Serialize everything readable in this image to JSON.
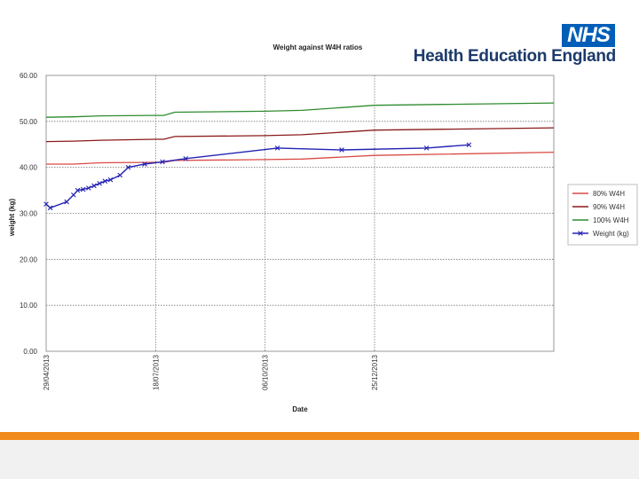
{
  "branding": {
    "nhs_logo": "NHS",
    "organisation": "Health Education England",
    "brand_color": "#005eb8",
    "text_color": "#1c3a6b",
    "footer_color": "#f08a1c"
  },
  "chart_data": {
    "type": "line",
    "title": "Weight against W4H ratios",
    "xlabel": "Date",
    "ylabel": "weight (kg)",
    "ylim": [
      0,
      60
    ],
    "yticks": [
      "0.00",
      "10.00",
      "20.00",
      "30.00",
      "40.00",
      "50.00",
      "60.00"
    ],
    "xlim": [
      "2013-04-29",
      "2014-05-05"
    ],
    "xtick_values": [
      "2013-04-29",
      "2013-07-18",
      "2013-10-06",
      "2013-12-25"
    ],
    "xticks": [
      "29/04/2013",
      "18/07/2013",
      "06/10/2013",
      "25/12/2013"
    ],
    "grid": true,
    "legend": "right",
    "series": [
      {
        "name": "80% W4H",
        "color": "#d94a45",
        "marker": "none",
        "points": [
          [
            "2013-04-29",
            40.7
          ],
          [
            "2013-05-19",
            40.7
          ],
          [
            "2013-06-08",
            41.0
          ],
          [
            "2013-07-18",
            41.1
          ],
          [
            "2013-07-24",
            41.1
          ],
          [
            "2013-08-01",
            41.5
          ],
          [
            "2013-10-06",
            41.7
          ],
          [
            "2013-11-02",
            41.8
          ],
          [
            "2013-12-25",
            42.6
          ],
          [
            "2014-05-05",
            43.3
          ]
        ]
      },
      {
        "name": "90% W4H",
        "color": "#8b1a1a",
        "marker": "none",
        "points": [
          [
            "2013-04-29",
            45.6
          ],
          [
            "2013-05-19",
            45.7
          ],
          [
            "2013-06-08",
            45.9
          ],
          [
            "2013-07-18",
            46.1
          ],
          [
            "2013-07-24",
            46.1
          ],
          [
            "2013-08-01",
            46.7
          ],
          [
            "2013-10-06",
            46.9
          ],
          [
            "2013-11-02",
            47.1
          ],
          [
            "2013-12-25",
            48.1
          ],
          [
            "2014-05-05",
            48.6
          ]
        ]
      },
      {
        "name": "100% W4H",
        "color": "#2e8b2e",
        "marker": "none",
        "points": [
          [
            "2013-04-29",
            50.9
          ],
          [
            "2013-05-19",
            51.0
          ],
          [
            "2013-06-08",
            51.2
          ],
          [
            "2013-07-18",
            51.3
          ],
          [
            "2013-07-24",
            51.3
          ],
          [
            "2013-08-01",
            52.0
          ],
          [
            "2013-10-06",
            52.2
          ],
          [
            "2013-11-02",
            52.4
          ],
          [
            "2013-12-25",
            53.5
          ],
          [
            "2014-05-05",
            54.0
          ]
        ]
      },
      {
        "name": "Weight (kg)",
        "color": "#2323b4",
        "marker": "x",
        "points": [
          [
            "2013-04-29",
            32.0
          ],
          [
            "2013-05-02",
            31.2
          ],
          [
            "2013-05-14",
            32.5
          ],
          [
            "2013-05-19",
            34.0
          ],
          [
            "2013-05-22",
            35.0
          ],
          [
            "2013-05-26",
            35.2
          ],
          [
            "2013-05-30",
            35.5
          ],
          [
            "2013-06-03",
            36.0
          ],
          [
            "2013-06-07",
            36.5
          ],
          [
            "2013-06-11",
            37.0
          ],
          [
            "2013-06-15",
            37.3
          ],
          [
            "2013-06-22",
            38.3
          ],
          [
            "2013-06-28",
            40.0
          ],
          [
            "2013-07-10",
            40.7
          ],
          [
            "2013-07-23",
            41.2
          ],
          [
            "2013-08-09",
            41.9
          ],
          [
            "2013-10-15",
            44.2
          ],
          [
            "2013-12-01",
            43.8
          ],
          [
            "2014-02-01",
            44.2
          ],
          [
            "2014-03-04",
            44.9
          ]
        ]
      }
    ]
  }
}
